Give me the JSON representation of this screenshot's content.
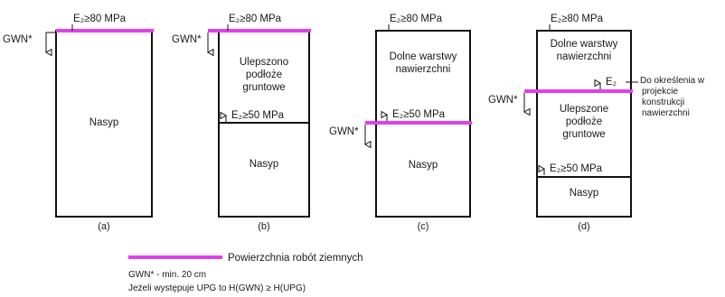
{
  "diagrams": [
    {
      "top_label": "E₂≥80 MPa",
      "gwn_label": "GWN*",
      "layers": [
        "Nasyp"
      ],
      "caption": "(a)"
    },
    {
      "top_label": "E₂≥80 MPa",
      "gwn_label": "GWN*",
      "layers": [
        "Ulepszono",
        "podłoże",
        "gruntowe",
        "Nasyp"
      ],
      "mid_label": "E₂≥50 MPa",
      "caption": "(b)"
    },
    {
      "top_label": "E₂≥80 MPa",
      "gwn_label": "GWN*",
      "layers": [
        "Dolne warstwy",
        "nawierzchni",
        "Nasyp"
      ],
      "mid_label": "E₂≥50 MPa",
      "caption": "(c)"
    },
    {
      "top_label": "E₂≥80 MPa",
      "gwn_label": "GWN*",
      "layers": [
        "Dolne warstwy",
        "nawierzchni",
        "Ulepszone",
        "podłoże",
        "gruntowe",
        "Nasyp"
      ],
      "mid_label": "E₂",
      "lower_label": "E₂≥50 MPa",
      "side_note": [
        "Do określenia w",
        "projekcie",
        "konstrukcji",
        "nawierzchni"
      ],
      "caption": "(d)"
    }
  ],
  "legend": {
    "line_label": "Powierzchnia robót ziemnych",
    "color": "#e040e8",
    "note1": "GWN* - min. 20 cm",
    "note2": "Jeżeli występuje UPG to H(GWN) ≥ H(UPG)"
  }
}
